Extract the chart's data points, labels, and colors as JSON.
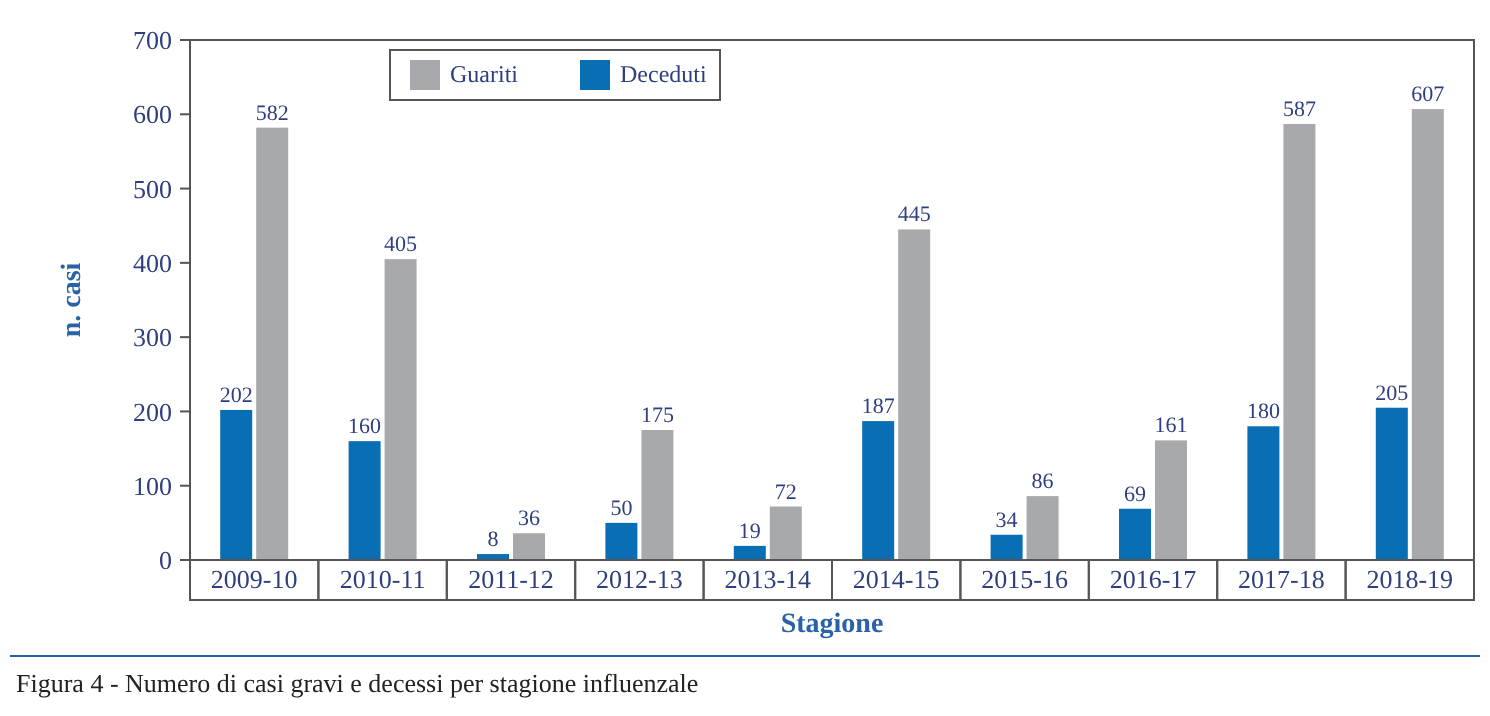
{
  "chart_data": {
    "type": "bar",
    "title": "Figura 4 - Numero di casi gravi e decessi per stagione influenzale",
    "xlabel": "Stagione",
    "ylabel": "n. casi",
    "categories": [
      "2009-10",
      "2010-11",
      "2011-12",
      "2012-13",
      "2013-14",
      "2014-15",
      "2015-16",
      "2016-17",
      "2017-18",
      "2018-19"
    ],
    "series": [
      {
        "name": "Deceduti",
        "color": "#0a6eb4",
        "values": [
          202,
          160,
          8,
          50,
          19,
          187,
          34,
          69,
          180,
          205
        ]
      },
      {
        "name": "Guariti",
        "color": "#a7a9ac",
        "values": [
          582,
          405,
          36,
          175,
          72,
          445,
          86,
          161,
          587,
          607
        ]
      }
    ],
    "ylim": [
      0,
      700
    ],
    "yticks": [
      0,
      100,
      200,
      300,
      400,
      500,
      600,
      700
    ],
    "grid": false,
    "legend": "top left",
    "data_labels": true
  }
}
